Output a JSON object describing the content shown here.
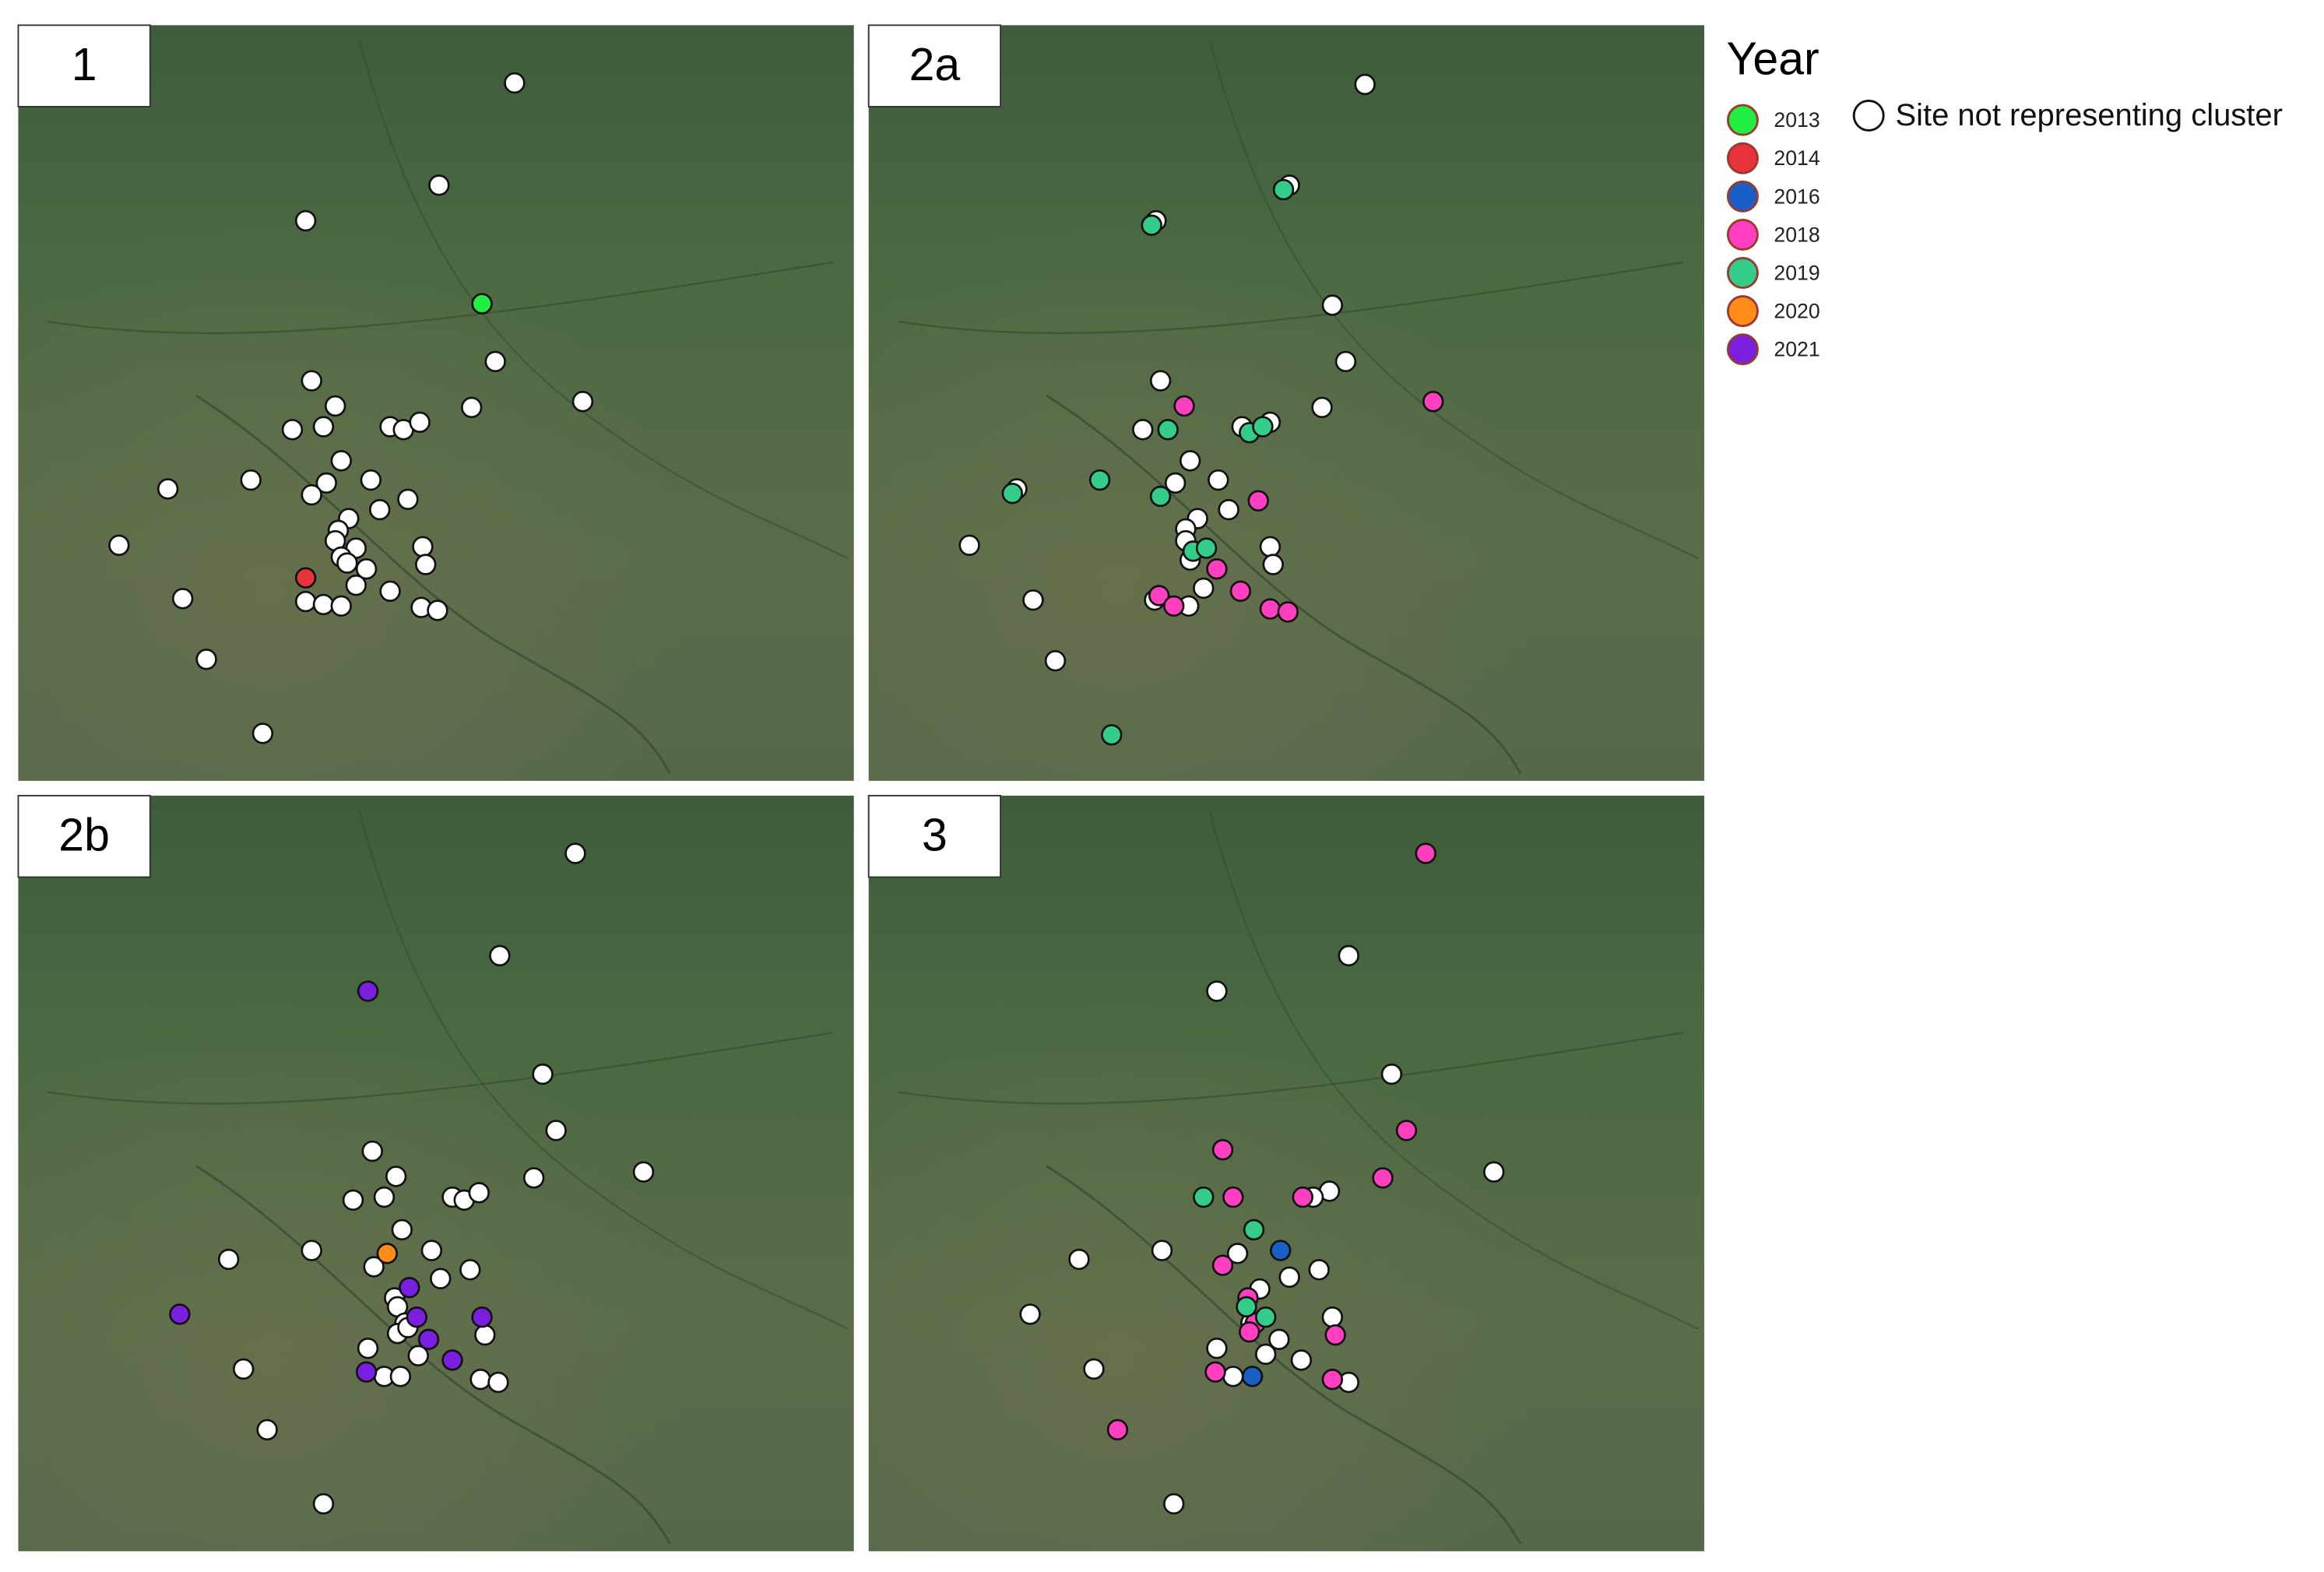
{
  "panels": [
    {
      "label": "1"
    },
    {
      "label": "2a"
    },
    {
      "label": "2b"
    },
    {
      "label": "3"
    }
  ],
  "legend": {
    "title": "Year",
    "entries": [
      {
        "label": "2013",
        "color": "#22ee44"
      },
      {
        "label": "2014",
        "color": "#e8333a"
      },
      {
        "label": "2016",
        "color": "#1a5fc8"
      },
      {
        "label": "2018",
        "color": "#ff3fbf"
      },
      {
        "label": "2019",
        "color": "#33cc88"
      },
      {
        "label": "2020",
        "color": "#ff8c1a"
      },
      {
        "label": "2021",
        "color": "#7a1fe0"
      }
    ],
    "other": "Site not representing cluster"
  }
}
